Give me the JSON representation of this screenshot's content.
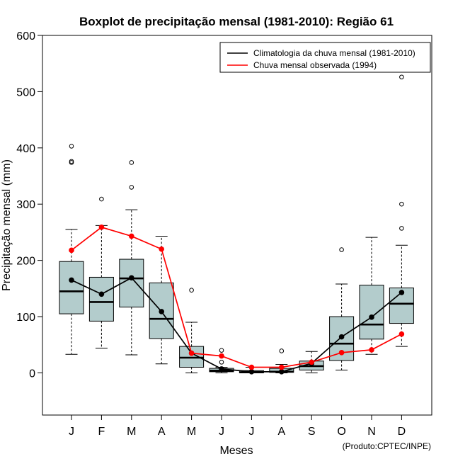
{
  "chart_data": {
    "type": "boxplot",
    "title": "Boxplot de precipitação mensal (1981-2010): Região 61",
    "xlabel": "Meses",
    "ylabel": "Precipitação mensal (mm)",
    "ylim": [
      -75,
      600
    ],
    "yticks": [
      0,
      100,
      200,
      300,
      400,
      500,
      600
    ],
    "credit": "(Produto:CPTEC/INPE)",
    "categories": [
      "J",
      "F",
      "M",
      "A",
      "M",
      "J",
      "J",
      "A",
      "S",
      "O",
      "N",
      "D"
    ],
    "boxes": [
      {
        "min": 33,
        "q1": 105,
        "median": 145,
        "q3": 198,
        "max": 255,
        "outliers": [
          403,
          376,
          374
        ]
      },
      {
        "min": 44,
        "q1": 92,
        "median": 126,
        "q3": 170,
        "max": 262,
        "outliers": [
          309
        ]
      },
      {
        "min": 32,
        "q1": 117,
        "median": 168,
        "q3": 202,
        "max": 290,
        "outliers": [
          374,
          330
        ]
      },
      {
        "min": 16,
        "q1": 61,
        "median": 96,
        "q3": 160,
        "max": 243,
        "outliers": []
      },
      {
        "min": 0,
        "q1": 10,
        "median": 27,
        "q3": 47,
        "max": 90,
        "outliers": [
          147
        ]
      },
      {
        "min": 0,
        "q1": 2,
        "median": 4,
        "q3": 8,
        "max": 10,
        "outliers": [
          19,
          40
        ]
      },
      {
        "min": 0,
        "q1": 0,
        "median": 1,
        "q3": 4,
        "max": 10,
        "outliers": []
      },
      {
        "min": 0,
        "q1": 1,
        "median": 2,
        "q3": 8,
        "max": 15,
        "outliers": [
          39
        ]
      },
      {
        "min": 0,
        "q1": 5,
        "median": 12,
        "q3": 21,
        "max": 38,
        "outliers": []
      },
      {
        "min": 5,
        "q1": 22,
        "median": 52,
        "q3": 100,
        "max": 158,
        "outliers": [
          219
        ]
      },
      {
        "min": 33,
        "q1": 60,
        "median": 86,
        "q3": 156,
        "max": 241,
        "outliers": []
      },
      {
        "min": 47,
        "q1": 88,
        "median": 123,
        "q3": 151,
        "max": 227,
        "outliers": [
          526,
          300,
          257
        ]
      }
    ],
    "series": [
      {
        "name": "Climatologia da chuva mensal (1981-2010)",
        "color": "#000000",
        "values": [
          165,
          140,
          169,
          109,
          35,
          7,
          2,
          2,
          17,
          64,
          99,
          143
        ]
      },
      {
        "name": "Chuva mensal observada (1994)",
        "color": "#ff0000",
        "values": [
          218,
          259,
          243,
          220,
          35,
          30,
          10,
          10,
          19,
          36,
          41,
          69
        ]
      }
    ],
    "box_fill": "#b3cccc",
    "legend_position": "top-right"
  }
}
